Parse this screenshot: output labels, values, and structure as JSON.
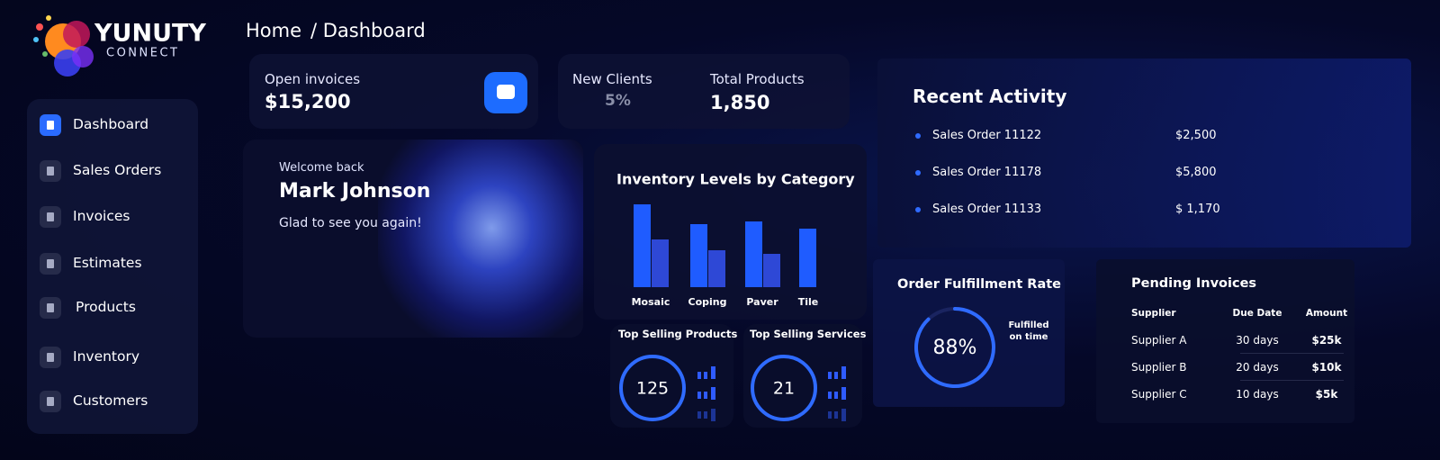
{
  "brand": {
    "name": "YUNUTY",
    "tagline": "CONNECT"
  },
  "breadcrumb": {
    "home": "Home",
    "current": "/ Dashboard"
  },
  "sidebar": {
    "items": [
      "Dashboard",
      "Sales Orders",
      "Invoices",
      "Estimates",
      "Products",
      "Inventory",
      "Customers"
    ],
    "active": 0
  },
  "stats": {
    "open_invoices": {
      "label": "Open invoices",
      "value": "$15,200"
    },
    "new_clients": {
      "label": "New Clients",
      "value": "5%"
    },
    "total_products": {
      "label": "Total Products",
      "value": "1,850"
    }
  },
  "welcome": {
    "greeting": "Welcome back",
    "name": "Mark Johnson",
    "message": "Glad to see you again!"
  },
  "inventory_chart": {
    "type": "bar",
    "title": "Inventory Levels by Category",
    "categories": [
      "Mosaic",
      "Coping",
      "Paver",
      "Tile"
    ],
    "series": [
      {
        "color": "#1f5cff",
        "values": [
          92,
          70,
          73,
          65
        ]
      },
      {
        "color": "#2e48d6",
        "values": [
          53,
          41,
          37,
          null
        ]
      }
    ],
    "ylim": [
      0,
      100
    ]
  },
  "top_selling_products": {
    "title": "Top Selling Products",
    "value": "125"
  },
  "top_selling_services": {
    "title": "Top Selling Services",
    "value": "21"
  },
  "recent_activity": {
    "title": "Recent Activity",
    "items": [
      {
        "label": "Sales Order 11122",
        "amount": "$2,500"
      },
      {
        "label": "Sales Order 11178",
        "amount": "$5,800"
      },
      {
        "label": "Sales Order 11133",
        "amount": "$ 1,170"
      }
    ]
  },
  "order_fulfillment": {
    "title": "Order Fulfillment Rate",
    "value": 88,
    "value_label": "88%",
    "legend": "Fulfilled on time",
    "color": "#2f6bff"
  },
  "pending_invoices": {
    "title": "Pending Invoices",
    "columns": [
      "Supplier",
      "Due Date",
      "Amount"
    ],
    "rows": [
      [
        "Supplier A",
        "30 days",
        "$25k"
      ],
      [
        "Supplier B",
        "20 days",
        "$10k"
      ],
      [
        "Supplier C",
        "10 days",
        "$5k"
      ]
    ]
  }
}
